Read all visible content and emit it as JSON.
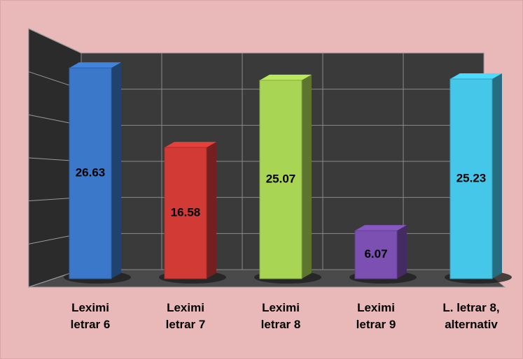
{
  "chart_data": {
    "type": "bar3d",
    "categories": [
      "Leximi\nletrar 6",
      "Leximi\nletrar 7",
      "Leximi\nletrar 8",
      "Leximi\nletrar 9",
      "L. letrar 8,\nalternativ"
    ],
    "values": [
      26.63,
      16.58,
      25.07,
      6.07,
      25.23
    ],
    "colors": [
      "#3b78c9",
      "#d23a36",
      "#a9d554",
      "#7c4fb2",
      "#45c7ea"
    ],
    "ylim": [
      0,
      30
    ],
    "yticks": [
      0,
      5,
      10,
      15,
      20,
      25,
      30
    ],
    "grid": true
  }
}
